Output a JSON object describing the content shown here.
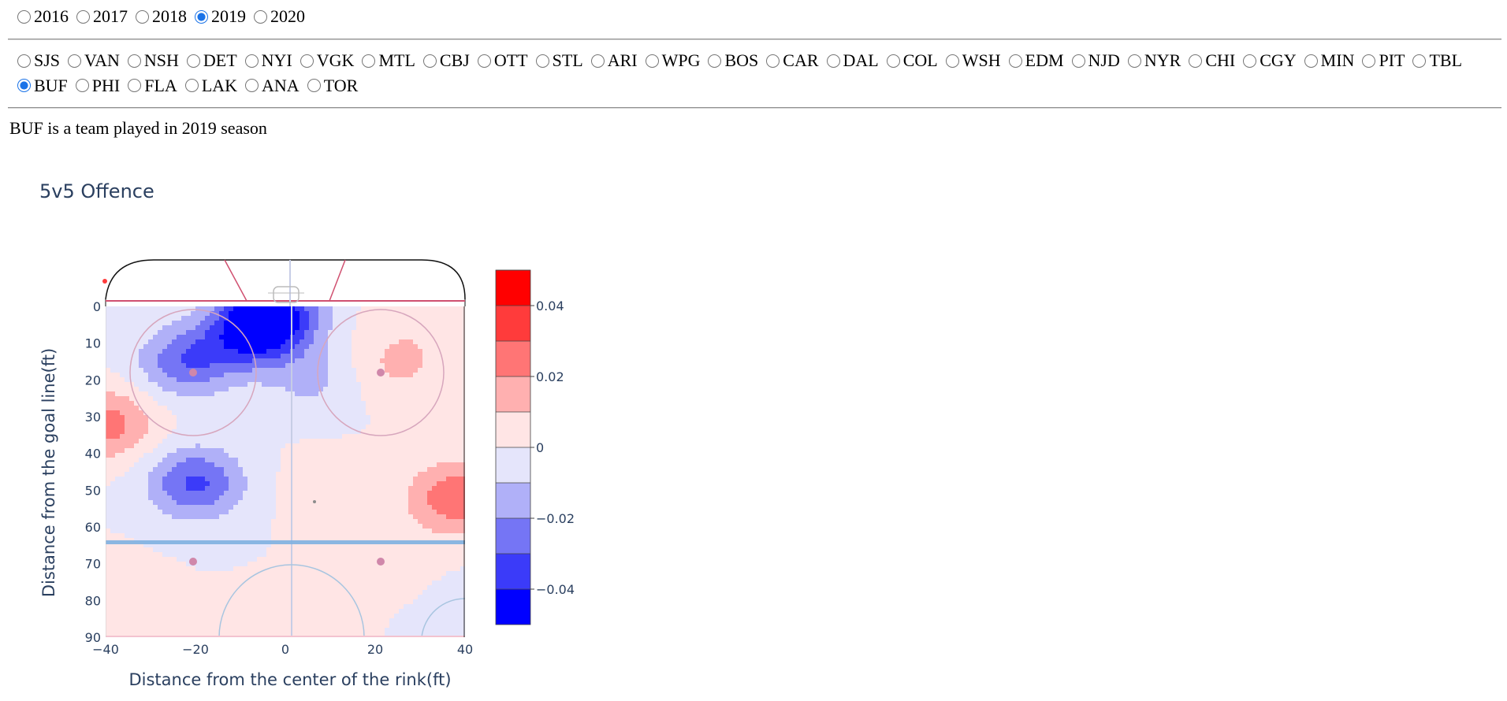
{
  "years": {
    "options": [
      "2016",
      "2017",
      "2018",
      "2019",
      "2020"
    ],
    "selected": "2019"
  },
  "teams": {
    "options": [
      "SJS",
      "VAN",
      "NSH",
      "DET",
      "NYI",
      "VGK",
      "MTL",
      "CBJ",
      "OTT",
      "STL",
      "ARI",
      "WPG",
      "BOS",
      "CAR",
      "DAL",
      "COL",
      "WSH",
      "EDM",
      "NJD",
      "NYR",
      "CHI",
      "CGY",
      "MIN",
      "PIT",
      "TBL",
      "BUF",
      "PHI",
      "FLA",
      "LAK",
      "ANA",
      "TOR"
    ],
    "selected": "BUF"
  },
  "status_text": "BUF is a team played in 2019 season",
  "colors": {
    "accent": "#1a73e8",
    "plot_text": "#2a3f5f",
    "blue_strong": "#0000ff",
    "red_strong": "#ff0000",
    "blue_line": "#6fa8dc",
    "rink_red": "#d05070"
  },
  "chart_data": {
    "type": "heatmap",
    "subtype": "contour",
    "title": "5v5 Offence",
    "xlabel": "Distance from the center of the rink(ft)",
    "ylabel": "Distance from the goal line(ft)",
    "xlim": [
      -40,
      40
    ],
    "ylim": [
      90,
      0
    ],
    "xticks": [
      -40,
      -20,
      0,
      20,
      40
    ],
    "yticks": [
      0,
      10,
      20,
      30,
      40,
      50,
      60,
      70,
      80,
      90
    ],
    "colorbar": {
      "range": [
        -0.05,
        0.05
      ],
      "ticks": [
        0.04,
        0.02,
        0,
        -0.02,
        -0.04
      ],
      "tick_labels": [
        "0.04",
        "0.02",
        "0",
        "−0.02",
        "−0.04"
      ],
      "levels": [
        {
          "from": 0.04,
          "to": 0.05,
          "color": "#ff0000"
        },
        {
          "from": 0.03,
          "to": 0.04,
          "color": "#ff3b3b"
        },
        {
          "from": 0.02,
          "to": 0.03,
          "color": "#ff7575"
        },
        {
          "from": 0.01,
          "to": 0.02,
          "color": "#ffb0b0"
        },
        {
          "from": 0.0,
          "to": 0.01,
          "color": "#ffe5e5"
        },
        {
          "from": -0.01,
          "to": 0.0,
          "color": "#e5e5fb"
        },
        {
          "from": -0.02,
          "to": -0.01,
          "color": "#b0b0f8"
        },
        {
          "from": -0.03,
          "to": -0.02,
          "color": "#7575f5"
        },
        {
          "from": -0.04,
          "to": -0.03,
          "color": "#3b3bf9"
        },
        {
          "from": -0.05,
          "to": -0.04,
          "color": "#0000ff"
        }
      ]
    },
    "hotspots": [
      {
        "x": -3,
        "y": 2,
        "value": -0.045
      },
      {
        "x": -8,
        "y": 8,
        "value": -0.03
      },
      {
        "x": -22,
        "y": 15,
        "value": -0.028
      },
      {
        "x": -20,
        "y": 48,
        "value": -0.032
      },
      {
        "x": -40,
        "y": 32,
        "value": 0.025
      },
      {
        "x": 38,
        "y": 52,
        "value": 0.028
      },
      {
        "x": 25,
        "y": 16,
        "value": 0.012
      },
      {
        "x": 10,
        "y": 50,
        "value": 0.006
      },
      {
        "x": 22,
        "y": 68,
        "value": 0.006
      },
      {
        "x": -40,
        "y": 78,
        "value": 0.005
      },
      {
        "x": 0,
        "y": 90,
        "value": 0.006
      },
      {
        "x": 30,
        "y": 2,
        "value": 0.006
      },
      {
        "x": 6,
        "y": 20,
        "value": -0.012
      },
      {
        "x": 40,
        "y": 82,
        "value": -0.003
      }
    ]
  }
}
